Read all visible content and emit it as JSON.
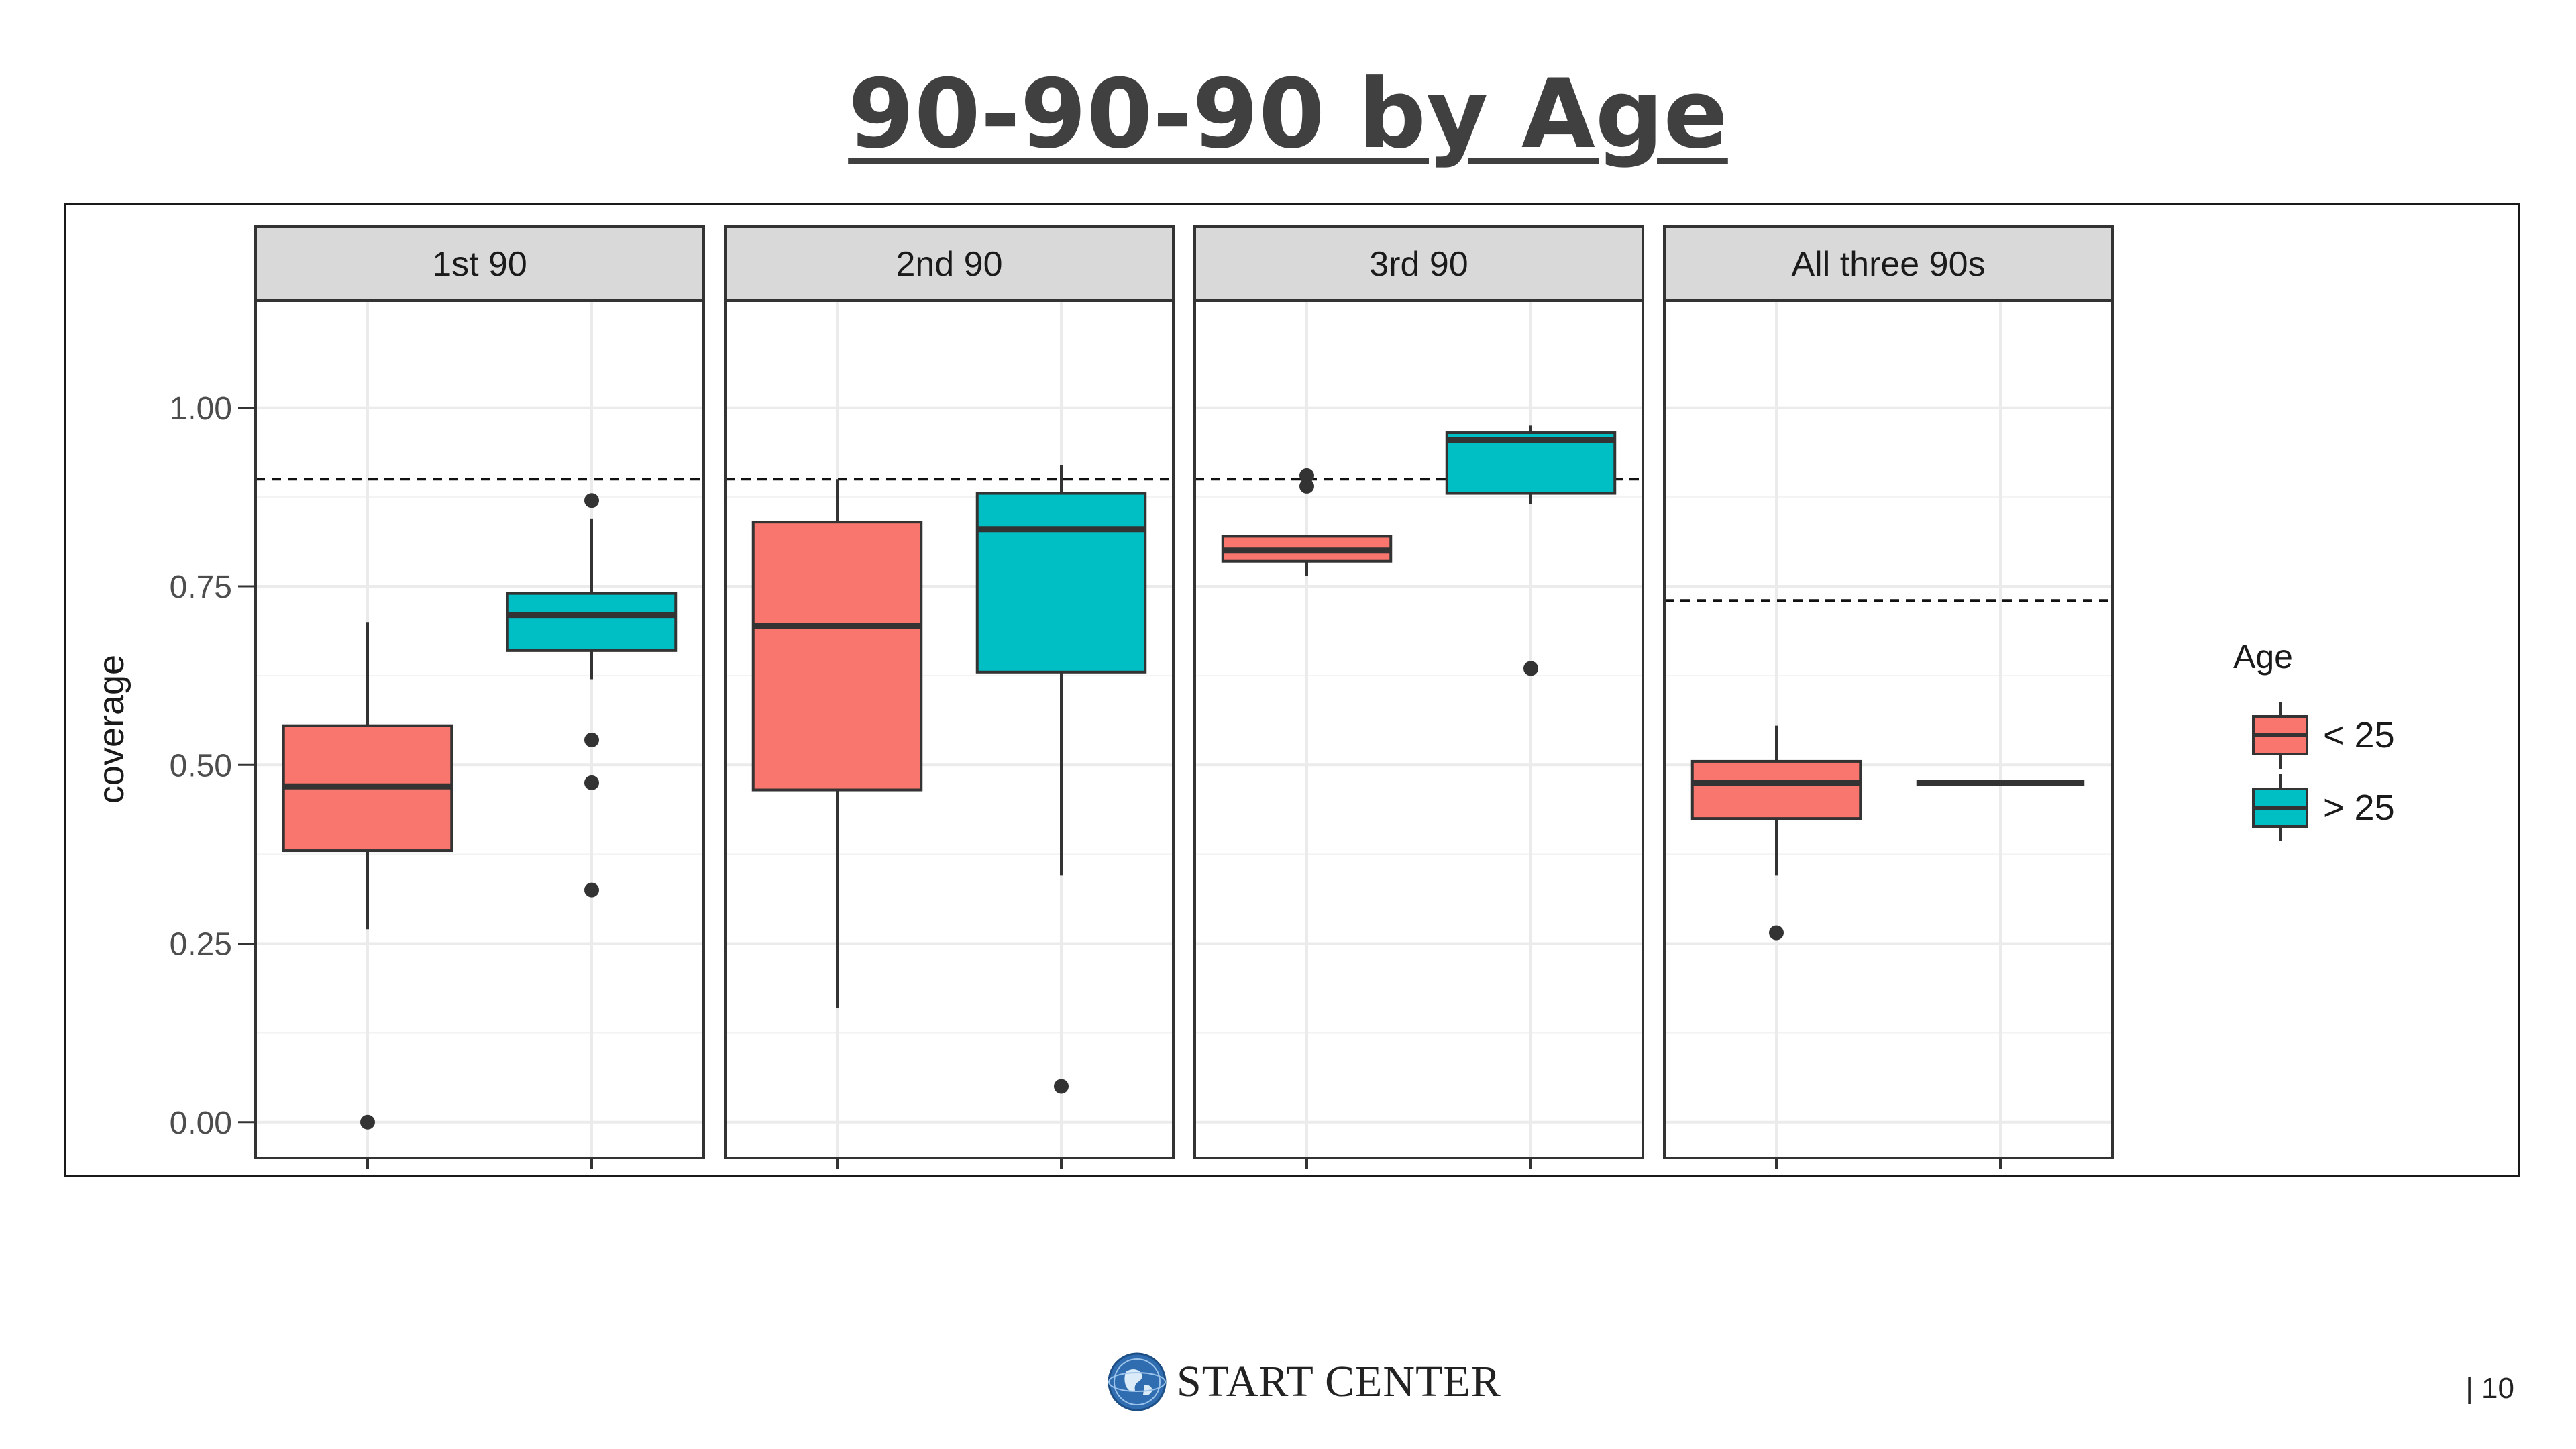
{
  "slide": {
    "title": "90-90-90 by Age",
    "page_number": "| 10"
  },
  "footer": {
    "logo_text": "START CENTER",
    "logo_icon": "globe-icon"
  },
  "colors": {
    "under_25": "#F8766D",
    "over_25": "#00BFC4",
    "strip_bg": "#D9D9D9",
    "grid": "#EBEBEB"
  },
  "chart_data": {
    "type": "boxplot",
    "ylabel": "coverage",
    "xlabel": "",
    "ylim": [
      -0.05,
      1.15
    ],
    "yticks": [
      "0.00",
      "0.25",
      "0.50",
      "0.75",
      "1.00"
    ],
    "grid": true,
    "legend": {
      "title": "Age",
      "placement": "right",
      "entries": [
        "< 25",
        "> 25"
      ]
    },
    "panels": [
      {
        "label": "1st 90",
        "target": 0.9,
        "boxes": [
          {
            "group": "< 25",
            "q1": 0.38,
            "median": 0.47,
            "q3": 0.555,
            "lower": 0.27,
            "upper": 0.7,
            "outliers": [
              0.0
            ]
          },
          {
            "group": "> 25",
            "q1": 0.66,
            "median": 0.71,
            "q3": 0.74,
            "lower": 0.62,
            "upper": 0.845,
            "outliers": [
              0.87,
              0.535,
              0.475,
              0.325
            ]
          }
        ]
      },
      {
        "label": "2nd 90",
        "target": 0.9,
        "boxes": [
          {
            "group": "< 25",
            "q1": 0.465,
            "median": 0.695,
            "q3": 0.84,
            "lower": 0.16,
            "upper": 0.9,
            "outliers": []
          },
          {
            "group": "> 25",
            "q1": 0.63,
            "median": 0.83,
            "q3": 0.88,
            "lower": 0.345,
            "upper": 0.92,
            "outliers": [
              0.05
            ]
          }
        ]
      },
      {
        "label": "3rd 90",
        "target": 0.9,
        "boxes": [
          {
            "group": "< 25",
            "q1": 0.785,
            "median": 0.8,
            "q3": 0.82,
            "lower": 0.765,
            "upper": 0.82,
            "outliers": [
              0.905,
              0.89
            ]
          },
          {
            "group": "> 25",
            "q1": 0.88,
            "median": 0.955,
            "q3": 0.965,
            "lower": 0.865,
            "upper": 0.975,
            "outliers": [
              0.635
            ]
          }
        ]
      },
      {
        "label": "All three 90s",
        "target": 0.73,
        "boxes": [
          {
            "group": "< 25",
            "q1": 0.425,
            "median": 0.475,
            "q3": 0.505,
            "lower": 0.345,
            "upper": 0.555,
            "outliers": [
              0.265
            ]
          },
          {
            "group": "> 25",
            "q1": 0.475,
            "median": 0.475,
            "q3": 0.475,
            "lower": 0.475,
            "upper": 0.475,
            "outliers": []
          }
        ]
      }
    ]
  }
}
